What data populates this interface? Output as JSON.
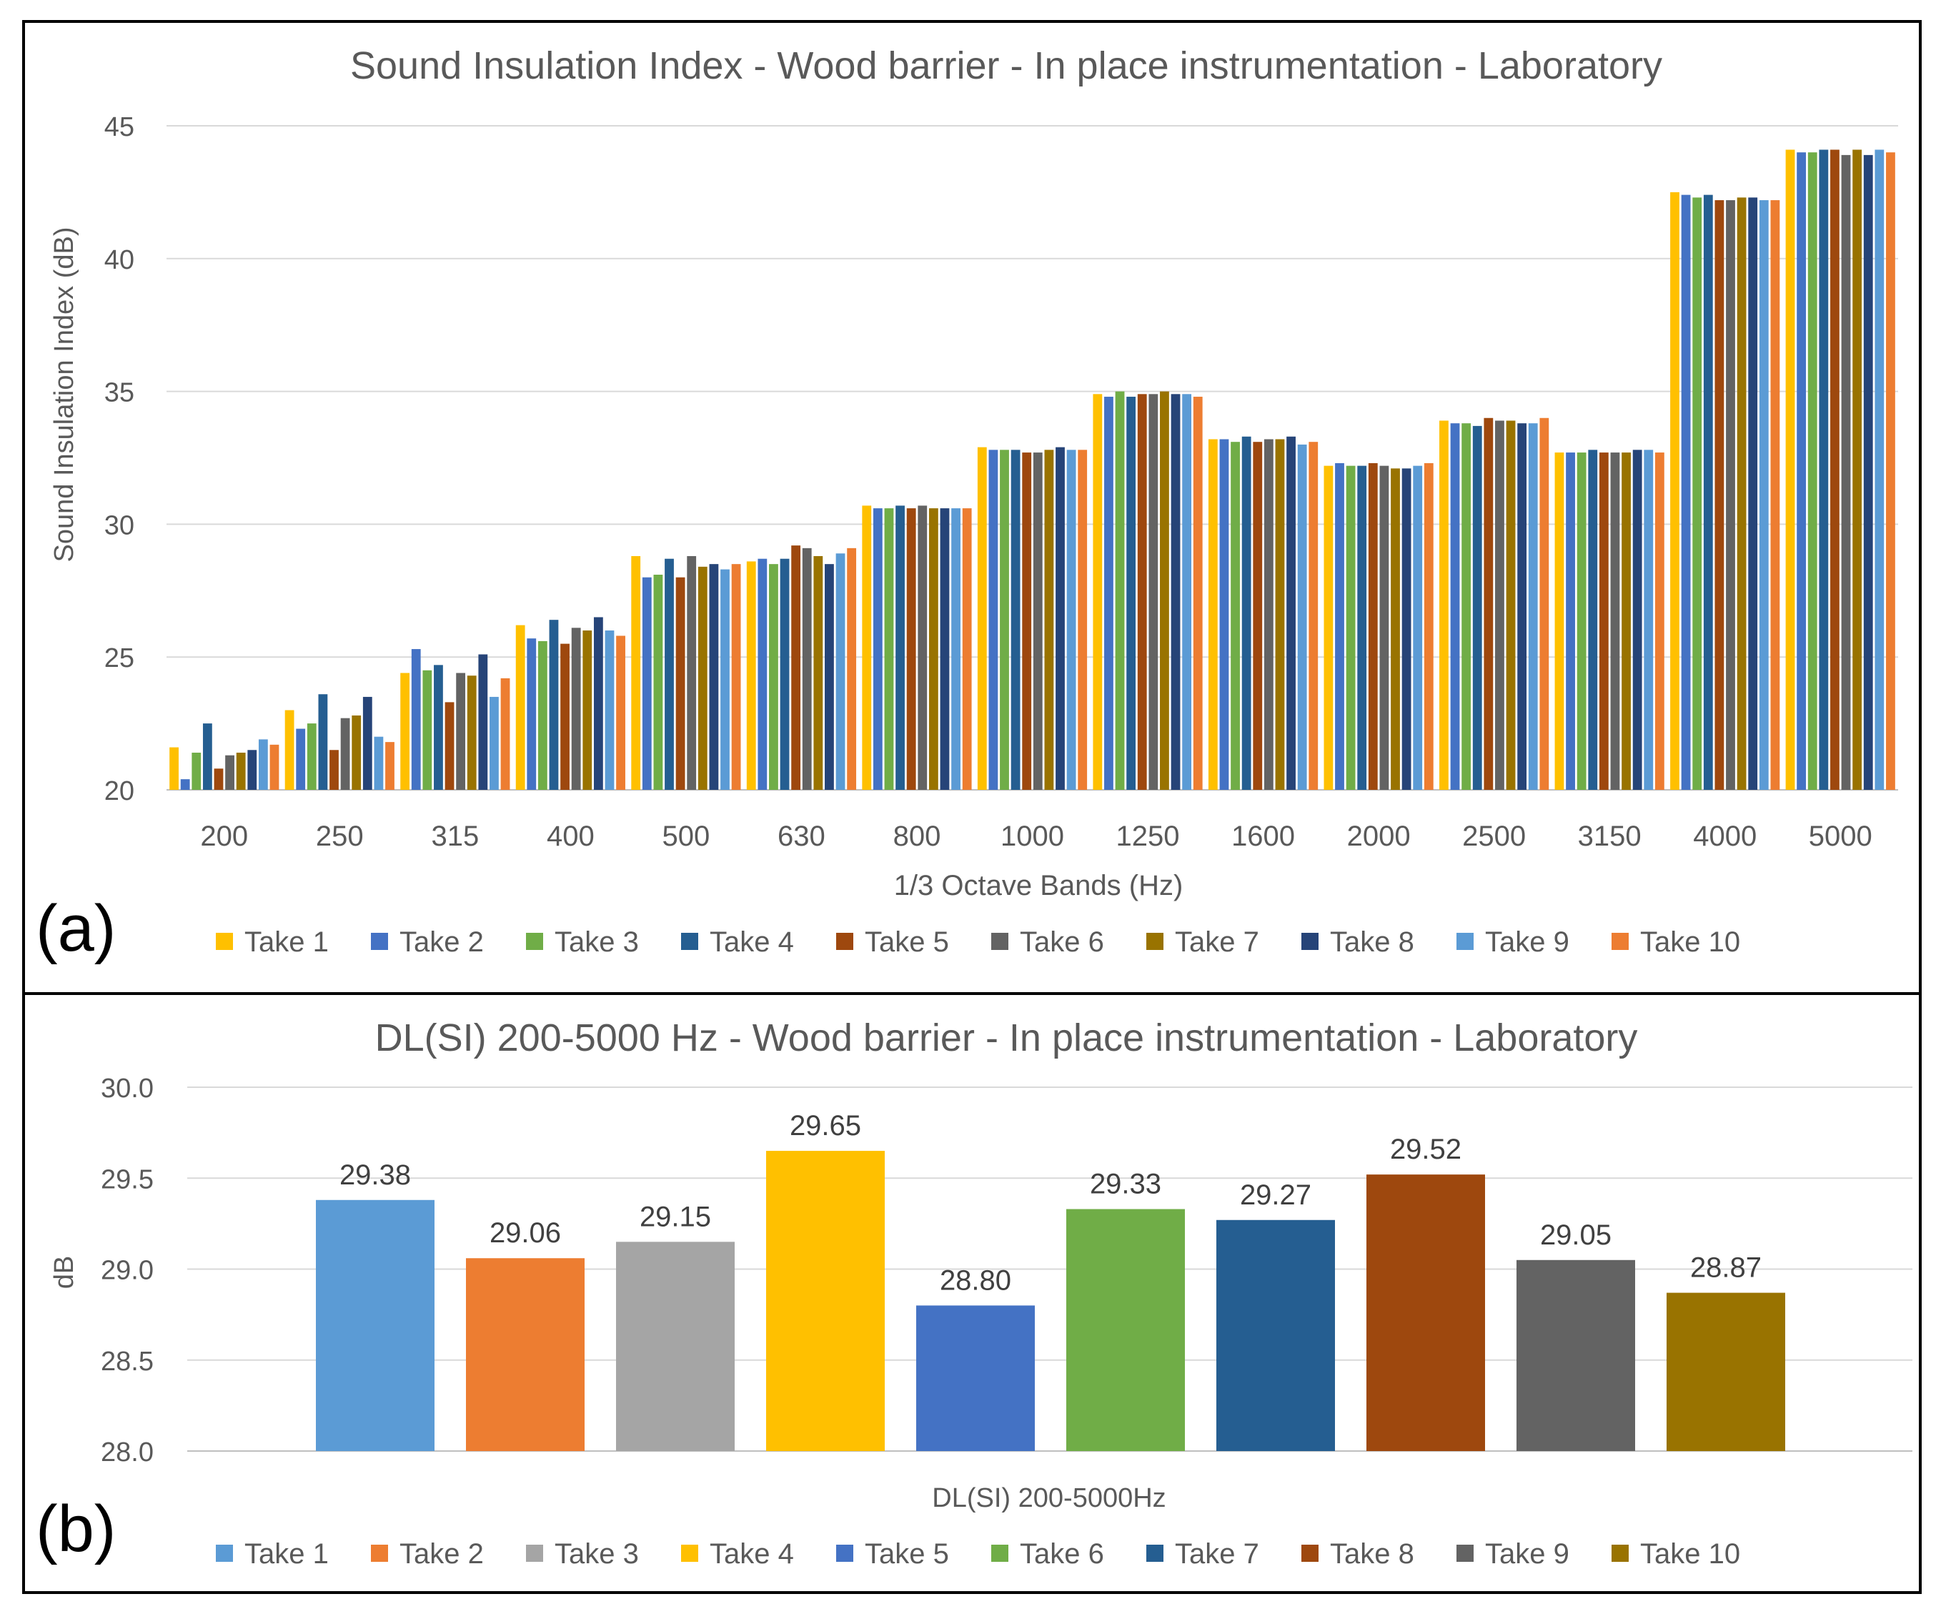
{
  "chart_data": [
    {
      "panel_label": "(a)",
      "type": "bar",
      "title": "Sound Insulation Index - Wood barrier - In place instrumentation - Laboratory",
      "xlabel": "1/3 Octave Bands (Hz)",
      "ylabel": "Sound Insulation Index (dB)",
      "ylim": [
        20,
        45
      ],
      "yticks": [
        "20",
        "25",
        "30",
        "35",
        "40",
        "45"
      ],
      "grid": true,
      "legend_position": "bottom",
      "categories": [
        "200",
        "250",
        "315",
        "400",
        "500",
        "630",
        "800",
        "1000",
        "1250",
        "1600",
        "2000",
        "2500",
        "3150",
        "4000",
        "5000"
      ],
      "series": [
        {
          "name": "Take 1",
          "color": "#FFC000",
          "values": [
            21.6,
            23.0,
            24.4,
            26.2,
            28.8,
            28.6,
            30.7,
            32.9,
            34.9,
            33.2,
            32.2,
            33.9,
            32.7,
            42.5,
            44.1
          ]
        },
        {
          "name": "Take 2",
          "color": "#4472C4",
          "values": [
            20.4,
            22.3,
            25.3,
            25.7,
            28.0,
            28.7,
            30.6,
            32.8,
            34.8,
            33.2,
            32.3,
            33.8,
            32.7,
            42.4,
            44.0
          ]
        },
        {
          "name": "Take 3",
          "color": "#70AD47",
          "values": [
            21.4,
            22.5,
            24.5,
            25.6,
            28.1,
            28.5,
            30.6,
            32.8,
            35.0,
            33.1,
            32.2,
            33.8,
            32.7,
            42.3,
            44.0
          ]
        },
        {
          "name": "Take 4",
          "color": "#255E91",
          "values": [
            22.5,
            23.6,
            24.7,
            26.4,
            28.7,
            28.7,
            30.7,
            32.8,
            34.8,
            33.3,
            32.2,
            33.7,
            32.8,
            42.4,
            44.1
          ]
        },
        {
          "name": "Take 5",
          "color": "#9E480E",
          "values": [
            20.8,
            21.5,
            23.3,
            25.5,
            28.0,
            29.2,
            30.6,
            32.7,
            34.9,
            33.1,
            32.3,
            34.0,
            32.7,
            42.2,
            44.1
          ]
        },
        {
          "name": "Take 6",
          "color": "#636363",
          "values": [
            21.3,
            22.7,
            24.4,
            26.1,
            28.8,
            29.1,
            30.7,
            32.7,
            34.9,
            33.2,
            32.2,
            33.9,
            32.7,
            42.2,
            43.9
          ]
        },
        {
          "name": "Take 7",
          "color": "#997300",
          "values": [
            21.4,
            22.8,
            24.3,
            26.0,
            28.4,
            28.8,
            30.6,
            32.8,
            35.0,
            33.2,
            32.1,
            33.9,
            32.7,
            42.3,
            44.1
          ]
        },
        {
          "name": "Take 8",
          "color": "#264478",
          "values": [
            21.5,
            23.5,
            25.1,
            26.5,
            28.5,
            28.5,
            30.6,
            32.9,
            34.9,
            33.3,
            32.1,
            33.8,
            32.8,
            42.3,
            43.9
          ]
        },
        {
          "name": "Take 9",
          "color": "#5B9BD5",
          "values": [
            21.9,
            22.0,
            23.5,
            26.0,
            28.3,
            28.9,
            30.6,
            32.8,
            34.9,
            33.0,
            32.2,
            33.8,
            32.8,
            42.2,
            44.1
          ]
        },
        {
          "name": "Take 10",
          "color": "#ED7D31",
          "values": [
            21.7,
            21.8,
            24.2,
            25.8,
            28.5,
            29.1,
            30.6,
            32.8,
            34.8,
            33.1,
            32.3,
            34.0,
            32.7,
            42.2,
            44.0
          ]
        }
      ]
    },
    {
      "panel_label": "(b)",
      "type": "bar",
      "title": "DL(SI) 200-5000 Hz - Wood barrier - In place instrumentation - Laboratory",
      "xlabel": "DL(SI) 200-5000Hz",
      "ylabel": "dB",
      "ylim": [
        28.0,
        30.0
      ],
      "yticks": [
        "28.0",
        "28.5",
        "29.0",
        "29.5",
        "30.0"
      ],
      "grid": true,
      "legend_position": "bottom",
      "categories": [
        "DL(SI) 200-5000Hz"
      ],
      "series": [
        {
          "name": "Take 1",
          "color": "#5B9BD5",
          "value": 29.38,
          "label": "29.38"
        },
        {
          "name": "Take 2",
          "color": "#ED7D31",
          "value": 29.06,
          "label": "29.06"
        },
        {
          "name": "Take 3",
          "color": "#A5A5A5",
          "value": 29.15,
          "label": "29.15"
        },
        {
          "name": "Take 4",
          "color": "#FFC000",
          "value": 29.65,
          "label": "29.65"
        },
        {
          "name": "Take 5",
          "color": "#4472C4",
          "value": 28.8,
          "label": "28.80"
        },
        {
          "name": "Take 6",
          "color": "#70AD47",
          "value": 29.33,
          "label": "29.33"
        },
        {
          "name": "Take 7",
          "color": "#255E91",
          "value": 29.27,
          "label": "29.27"
        },
        {
          "name": "Take 8",
          "color": "#9E480E",
          "value": 29.52,
          "label": "29.52"
        },
        {
          "name": "Take 9",
          "color": "#636363",
          "value": 29.05,
          "label": "29.05"
        },
        {
          "name": "Take 10",
          "color": "#997300",
          "value": 28.87,
          "label": "28.87"
        }
      ]
    }
  ]
}
